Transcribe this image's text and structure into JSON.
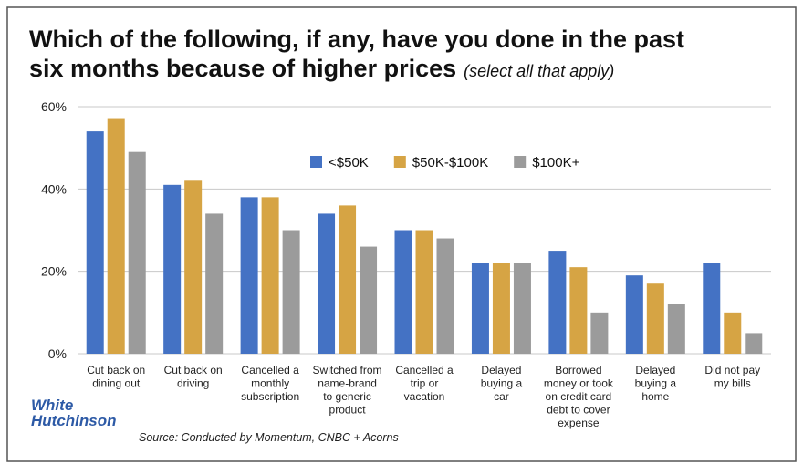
{
  "chart_data": {
    "type": "bar",
    "title": [
      "Which of the following, if any, have you done in the past",
      "six months because of higher prices"
    ],
    "subtitle": "(select all that apply)",
    "categories": [
      [
        "Cut back on",
        "dining out"
      ],
      [
        "Cut back on",
        "driving"
      ],
      [
        "Cancelled a",
        "monthly",
        "subscription"
      ],
      [
        "Switched from",
        "name-brand",
        "to generic",
        "product"
      ],
      [
        "Cancelled a",
        "trip or",
        "vacation"
      ],
      [
        "Delayed",
        "buying a",
        "car"
      ],
      [
        "Borrowed",
        "money or took",
        "on credit card",
        "debt to cover",
        "expense"
      ],
      [
        "Delayed",
        "buying a",
        "home"
      ],
      [
        "Did not pay",
        "my bills"
      ]
    ],
    "series": [
      {
        "name": "<$50K",
        "color": "#4472c4",
        "values": [
          54,
          41,
          38,
          34,
          30,
          22,
          25,
          19,
          22
        ]
      },
      {
        "name": "$50K-$100K",
        "color": "#d6a444",
        "values": [
          57,
          42,
          38,
          36,
          30,
          22,
          21,
          17,
          10
        ]
      },
      {
        "name": "$100K+",
        "color": "#9b9b9b",
        "values": [
          49,
          34,
          30,
          26,
          28,
          22,
          10,
          12,
          5
        ]
      }
    ],
    "ylim": [
      0,
      60
    ],
    "yticks": [
      {
        "value": 0,
        "label": "0%"
      },
      {
        "value": 20,
        "label": "20%"
      },
      {
        "value": 40,
        "label": "40%"
      },
      {
        "value": 60,
        "label": "60%"
      }
    ],
    "grid": true,
    "source": "Source: Conducted by Momentum, CNBC + Acorns",
    "logo": [
      "White",
      "Hutchinson"
    ]
  }
}
